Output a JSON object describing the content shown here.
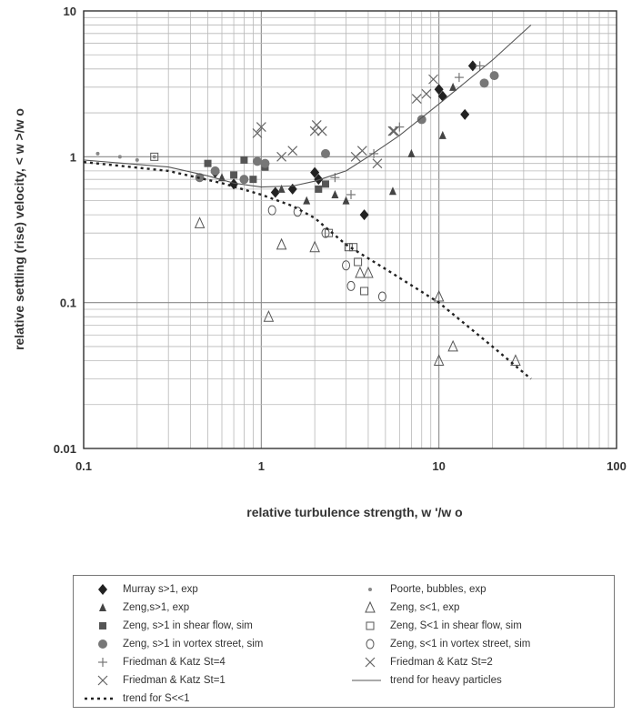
{
  "chart_data": {
    "type": "scatter",
    "title": "",
    "xlabel": "relative turbulence strength,  w '/w o",
    "ylabel": "relative settling (rise) velocity,  < w >/w o",
    "xscale": "log",
    "yscale": "log",
    "xlim": [
      0.1,
      100
    ],
    "ylim": [
      0.01,
      10
    ],
    "grid": true,
    "legend_position": "below",
    "x_ticks": [
      "0.1",
      "1",
      "10",
      "100"
    ],
    "y_ticks": [
      "0.01",
      "0.1",
      "1",
      "10"
    ],
    "series": [
      {
        "name": "Murray  s>1, exp",
        "marker": "diamond",
        "color": "#222222",
        "x": [
          0.55,
          0.7,
          1.2,
          1.5,
          2.0,
          2.1,
          3.8,
          10.0,
          10.5,
          14.0,
          15.5
        ],
        "y": [
          0.78,
          0.65,
          0.57,
          0.6,
          0.78,
          0.7,
          0.4,
          2.9,
          2.6,
          1.95,
          4.2
        ]
      },
      {
        "name": "Poorte, bubbles, exp",
        "marker": "smalldot",
        "color": "#888888",
        "x": [
          0.12,
          0.16,
          0.2,
          0.25
        ],
        "y": [
          1.05,
          1.0,
          0.95,
          1.0
        ]
      },
      {
        "name": "Zeng,s>1, exp",
        "marker": "triangle-filled",
        "color": "#444444",
        "x": [
          0.6,
          1.3,
          1.8,
          2.6,
          3.0,
          5.5,
          7.0,
          10.5,
          12.0
        ],
        "y": [
          0.72,
          0.6,
          0.5,
          0.55,
          0.5,
          0.58,
          1.05,
          1.4,
          3.0
        ]
      },
      {
        "name": "Zeng, s<1, exp",
        "marker": "triangle-open",
        "color": "#555555",
        "x": [
          0.45,
          1.1,
          1.3,
          2.0,
          3.6,
          4.0,
          10.0,
          10.0,
          12.0,
          27.0
        ],
        "y": [
          0.35,
          0.08,
          0.25,
          0.24,
          0.16,
          0.16,
          0.11,
          0.04,
          0.05,
          0.04
        ]
      },
      {
        "name": "Zeng, s>1 in shear flow, sim",
        "marker": "square-filled",
        "color": "#555555",
        "x": [
          0.5,
          0.7,
          0.8,
          0.9,
          1.05,
          2.1,
          2.3
        ],
        "y": [
          0.9,
          0.75,
          0.95,
          0.7,
          0.85,
          0.6,
          0.65
        ]
      },
      {
        "name": "Zeng, S<1 in shear flow, sim",
        "marker": "square-open",
        "color": "#555555",
        "x": [
          0.25,
          2.4,
          3.1,
          3.3,
          3.5,
          3.8
        ],
        "y": [
          1.0,
          0.3,
          0.24,
          0.24,
          0.19,
          0.12
        ]
      },
      {
        "name": "Zeng, s>1 in vortex street, sim",
        "marker": "circle-filled",
        "color": "#777777",
        "x": [
          0.45,
          0.55,
          0.8,
          0.95,
          1.05,
          2.3,
          8.0,
          18.0,
          20.5
        ],
        "y": [
          0.72,
          0.8,
          0.7,
          0.93,
          0.9,
          1.05,
          1.8,
          3.2,
          3.6
        ]
      },
      {
        "name": "Zeng, s<1 in vortex street, sim",
        "marker": "circle-open",
        "color": "#555555",
        "x": [
          1.15,
          1.6,
          2.3,
          3.0,
          3.2,
          4.8
        ],
        "y": [
          0.43,
          0.42,
          0.3,
          0.18,
          0.13,
          0.11
        ]
      },
      {
        "name": "Friedman & Katz St=4",
        "marker": "plus",
        "color": "#777777",
        "x": [
          2.6,
          3.2,
          4.3,
          6.0,
          13.0,
          17.0
        ],
        "y": [
          0.72,
          0.55,
          1.05,
          1.6,
          3.5,
          4.2
        ]
      },
      {
        "name": "Friedman & Katz St=2",
        "marker": "x",
        "color": "#666666",
        "x": [
          1.3,
          1.5,
          2.2,
          3.4,
          4.5,
          5.6,
          7.5,
          9.3
        ],
        "y": [
          1.0,
          1.1,
          1.5,
          1.0,
          0.9,
          1.5,
          2.5,
          3.4
        ]
      },
      {
        "name": "Friedman & Katz St=1",
        "marker": "x",
        "color": "#666666",
        "x": [
          0.95,
          1.0,
          2.0,
          2.05,
          3.7,
          5.5,
          8.5
        ],
        "y": [
          1.45,
          1.6,
          1.5,
          1.65,
          1.1,
          1.5,
          2.7
        ]
      },
      {
        "name": "trend for heavy particles",
        "marker": "line-solid",
        "color": "#555555",
        "x": [
          0.1,
          0.3,
          0.5,
          0.7,
          1.0,
          1.5,
          2.0,
          3.0,
          4.0,
          6.0,
          10.0,
          20.0,
          33.0
        ],
        "y": [
          0.95,
          0.85,
          0.74,
          0.66,
          0.62,
          0.63,
          0.68,
          0.8,
          1.0,
          1.4,
          2.3,
          4.6,
          8.0
        ]
      },
      {
        "name": "trend for S<<1",
        "marker": "line-dotted",
        "color": "#222222",
        "x": [
          0.1,
          0.3,
          0.6,
          1.0,
          1.5,
          2.0,
          3.0,
          5.0,
          10.0,
          20.0,
          33.0
        ],
        "y": [
          0.92,
          0.8,
          0.66,
          0.55,
          0.46,
          0.38,
          0.25,
          0.17,
          0.1,
          0.05,
          0.03
        ]
      }
    ]
  },
  "legend_layout": [
    0,
    1,
    2,
    3,
    4,
    5,
    6,
    7,
    8,
    9,
    10,
    11,
    12
  ]
}
